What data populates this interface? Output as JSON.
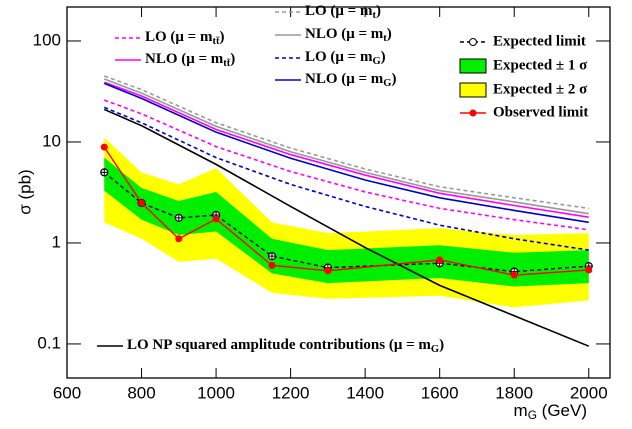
{
  "chart_data": {
    "type": "line",
    "ylabel": "σ (pb)",
    "xlabel": [
      "m",
      "G",
      " (GeV)"
    ],
    "xlim": [
      600,
      2057
    ],
    "ylim": [
      0.046,
      217
    ],
    "log_y": true,
    "xticks": [
      600,
      800,
      1000,
      1200,
      1400,
      1600,
      1800,
      2000
    ],
    "yticks": [
      0.1,
      1,
      10,
      100
    ],
    "series": [
      {
        "name": "Expected ± 2 σ",
        "type": "band",
        "color": "#ffff00",
        "x": [
          700,
          800,
          900,
          1000,
          1150,
          1300,
          1600,
          1800,
          2000
        ],
        "lower": [
          1.6,
          1.1,
          0.65,
          0.7,
          0.32,
          0.28,
          0.3,
          0.23,
          0.27
        ],
        "upper": [
          11,
          5,
          3.8,
          5.5,
          1.6,
          1.25,
          1.4,
          1.2,
          1.25
        ]
      },
      {
        "name": "Expected ± 1 σ",
        "type": "band",
        "color": "#00ee00",
        "x": [
          700,
          800,
          900,
          1000,
          1150,
          1300,
          1600,
          1800,
          2000
        ],
        "lower": [
          3.3,
          1.7,
          1.2,
          1.3,
          0.5,
          0.4,
          0.45,
          0.37,
          0.4
        ],
        "upper": [
          7,
          3.5,
          2.6,
          3.2,
          1.1,
          0.85,
          0.95,
          0.8,
          0.85
        ]
      },
      {
        "name": "Expected limit",
        "type": "expected",
        "color": "#000000",
        "dashed": true,
        "x": [
          700,
          800,
          900,
          1000,
          1150,
          1300,
          1600,
          1800,
          2000
        ],
        "values": [
          5.0,
          2.49,
          1.77,
          1.89,
          0.74,
          0.57,
          0.63,
          0.52,
          0.59
        ]
      },
      {
        "name": "Observed limit",
        "type": "observed",
        "color": "#ff0000",
        "dashed": false,
        "x": [
          700,
          800,
          900,
          1000,
          1150,
          1300,
          1600,
          1800,
          2000
        ],
        "values": [
          8.9,
          2.49,
          1.1,
          1.73,
          0.6,
          0.53,
          0.68,
          0.48,
          0.54
        ]
      },
      {
        "name": [
          "LO (μ = m",
          "tt̄",
          ")"
        ],
        "type": "curve",
        "color": "#ff00ff",
        "dashed": true,
        "x": [
          700,
          800,
          1000,
          1200,
          1400,
          1600,
          1800,
          2000
        ],
        "values": [
          26,
          19,
          9,
          5.1,
          3.2,
          2.2,
          1.7,
          1.35
        ]
      },
      {
        "name": [
          "NLO (μ = m",
          "tt̄",
          ")"
        ],
        "type": "curve",
        "color": "#ff00ff",
        "dashed": false,
        "x": [
          700,
          800,
          1000,
          1200,
          1400,
          1600,
          1800,
          2000
        ],
        "values": [
          39,
          28.5,
          13.3,
          7.5,
          4.7,
          3.1,
          2.35,
          1.8
        ]
      },
      {
        "name": [
          "LO (μ = m",
          "t",
          ")"
        ],
        "type": "curve",
        "color": "#999999",
        "dashed": true,
        "x": [
          700,
          800,
          1000,
          1200,
          1400,
          1600,
          1800,
          2000
        ],
        "values": [
          45,
          33,
          15.5,
          8.7,
          5.4,
          3.6,
          2.8,
          2.2
        ]
      },
      {
        "name": [
          "NLO (μ = m",
          "t",
          ")"
        ],
        "type": "curve",
        "color": "#999999",
        "dashed": false,
        "x": [
          700,
          800,
          1000,
          1200,
          1400,
          1600,
          1800,
          2000
        ],
        "values": [
          42,
          30.5,
          14.3,
          8.0,
          5.0,
          3.3,
          2.55,
          1.95
        ]
      },
      {
        "name": [
          "LO (μ = m",
          "G",
          ")"
        ],
        "type": "curve",
        "color": "#0000cc",
        "dashed": true,
        "x": [
          700,
          800,
          1000,
          1200,
          1400,
          1600,
          1800,
          2000
        ],
        "values": [
          22,
          15.5,
          7.0,
          3.8,
          2.3,
          1.5,
          1.1,
          0.85
        ]
      },
      {
        "name": [
          "NLO (μ = m",
          "G",
          ")"
        ],
        "type": "curve",
        "color": "#0000cc",
        "dashed": false,
        "x": [
          700,
          800,
          1000,
          1200,
          1400,
          1600,
          1800,
          2000
        ],
        "values": [
          38,
          27,
          12.5,
          6.9,
          4.2,
          2.8,
          2.1,
          1.6
        ]
      },
      {
        "name": [
          "LO NP squared amplitude contributions (μ = m",
          "G",
          ")"
        ],
        "type": "curve",
        "color": "#000000",
        "dashed": false,
        "x": [
          700,
          800,
          1000,
          1200,
          1400,
          1600,
          1800,
          2000
        ],
        "values": [
          21,
          14.5,
          6,
          2.3,
          0.9,
          0.38,
          0.19,
          0.095
        ]
      }
    ]
  }
}
